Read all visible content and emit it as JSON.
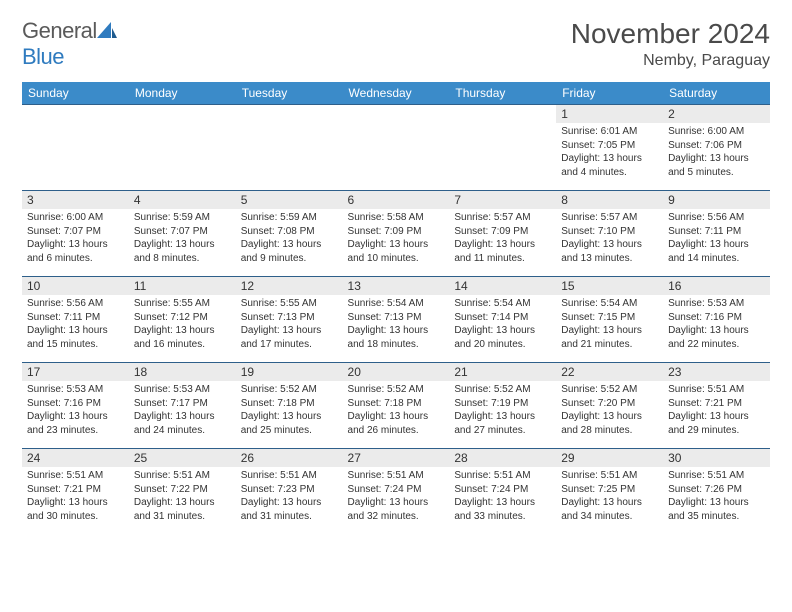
{
  "logo": {
    "general": "General",
    "blue": "Blue"
  },
  "title": "November 2024",
  "location": "Nemby, Paraguay",
  "colors": {
    "header_bg": "#3b8bc9",
    "header_text": "#ffffff",
    "border": "#2e5f8a",
    "daynum_bg": "#ebebeb",
    "spacer_bg": "#f0f0f0",
    "logo_gray": "#5a5a5a",
    "logo_blue": "#2f7bbf"
  },
  "weekdays": [
    "Sunday",
    "Monday",
    "Tuesday",
    "Wednesday",
    "Thursday",
    "Friday",
    "Saturday"
  ],
  "weeks": [
    [
      null,
      null,
      null,
      null,
      null,
      {
        "n": "1",
        "sr": "Sunrise: 6:01 AM",
        "ss": "Sunset: 7:05 PM",
        "dl1": "Daylight: 13 hours",
        "dl2": "and 4 minutes."
      },
      {
        "n": "2",
        "sr": "Sunrise: 6:00 AM",
        "ss": "Sunset: 7:06 PM",
        "dl1": "Daylight: 13 hours",
        "dl2": "and 5 minutes."
      }
    ],
    [
      {
        "n": "3",
        "sr": "Sunrise: 6:00 AM",
        "ss": "Sunset: 7:07 PM",
        "dl1": "Daylight: 13 hours",
        "dl2": "and 6 minutes."
      },
      {
        "n": "4",
        "sr": "Sunrise: 5:59 AM",
        "ss": "Sunset: 7:07 PM",
        "dl1": "Daylight: 13 hours",
        "dl2": "and 8 minutes."
      },
      {
        "n": "5",
        "sr": "Sunrise: 5:59 AM",
        "ss": "Sunset: 7:08 PM",
        "dl1": "Daylight: 13 hours",
        "dl2": "and 9 minutes."
      },
      {
        "n": "6",
        "sr": "Sunrise: 5:58 AM",
        "ss": "Sunset: 7:09 PM",
        "dl1": "Daylight: 13 hours",
        "dl2": "and 10 minutes."
      },
      {
        "n": "7",
        "sr": "Sunrise: 5:57 AM",
        "ss": "Sunset: 7:09 PM",
        "dl1": "Daylight: 13 hours",
        "dl2": "and 11 minutes."
      },
      {
        "n": "8",
        "sr": "Sunrise: 5:57 AM",
        "ss": "Sunset: 7:10 PM",
        "dl1": "Daylight: 13 hours",
        "dl2": "and 13 minutes."
      },
      {
        "n": "9",
        "sr": "Sunrise: 5:56 AM",
        "ss": "Sunset: 7:11 PM",
        "dl1": "Daylight: 13 hours",
        "dl2": "and 14 minutes."
      }
    ],
    [
      {
        "n": "10",
        "sr": "Sunrise: 5:56 AM",
        "ss": "Sunset: 7:11 PM",
        "dl1": "Daylight: 13 hours",
        "dl2": "and 15 minutes."
      },
      {
        "n": "11",
        "sr": "Sunrise: 5:55 AM",
        "ss": "Sunset: 7:12 PM",
        "dl1": "Daylight: 13 hours",
        "dl2": "and 16 minutes."
      },
      {
        "n": "12",
        "sr": "Sunrise: 5:55 AM",
        "ss": "Sunset: 7:13 PM",
        "dl1": "Daylight: 13 hours",
        "dl2": "and 17 minutes."
      },
      {
        "n": "13",
        "sr": "Sunrise: 5:54 AM",
        "ss": "Sunset: 7:13 PM",
        "dl1": "Daylight: 13 hours",
        "dl2": "and 18 minutes."
      },
      {
        "n": "14",
        "sr": "Sunrise: 5:54 AM",
        "ss": "Sunset: 7:14 PM",
        "dl1": "Daylight: 13 hours",
        "dl2": "and 20 minutes."
      },
      {
        "n": "15",
        "sr": "Sunrise: 5:54 AM",
        "ss": "Sunset: 7:15 PM",
        "dl1": "Daylight: 13 hours",
        "dl2": "and 21 minutes."
      },
      {
        "n": "16",
        "sr": "Sunrise: 5:53 AM",
        "ss": "Sunset: 7:16 PM",
        "dl1": "Daylight: 13 hours",
        "dl2": "and 22 minutes."
      }
    ],
    [
      {
        "n": "17",
        "sr": "Sunrise: 5:53 AM",
        "ss": "Sunset: 7:16 PM",
        "dl1": "Daylight: 13 hours",
        "dl2": "and 23 minutes."
      },
      {
        "n": "18",
        "sr": "Sunrise: 5:53 AM",
        "ss": "Sunset: 7:17 PM",
        "dl1": "Daylight: 13 hours",
        "dl2": "and 24 minutes."
      },
      {
        "n": "19",
        "sr": "Sunrise: 5:52 AM",
        "ss": "Sunset: 7:18 PM",
        "dl1": "Daylight: 13 hours",
        "dl2": "and 25 minutes."
      },
      {
        "n": "20",
        "sr": "Sunrise: 5:52 AM",
        "ss": "Sunset: 7:18 PM",
        "dl1": "Daylight: 13 hours",
        "dl2": "and 26 minutes."
      },
      {
        "n": "21",
        "sr": "Sunrise: 5:52 AM",
        "ss": "Sunset: 7:19 PM",
        "dl1": "Daylight: 13 hours",
        "dl2": "and 27 minutes."
      },
      {
        "n": "22",
        "sr": "Sunrise: 5:52 AM",
        "ss": "Sunset: 7:20 PM",
        "dl1": "Daylight: 13 hours",
        "dl2": "and 28 minutes."
      },
      {
        "n": "23",
        "sr": "Sunrise: 5:51 AM",
        "ss": "Sunset: 7:21 PM",
        "dl1": "Daylight: 13 hours",
        "dl2": "and 29 minutes."
      }
    ],
    [
      {
        "n": "24",
        "sr": "Sunrise: 5:51 AM",
        "ss": "Sunset: 7:21 PM",
        "dl1": "Daylight: 13 hours",
        "dl2": "and 30 minutes."
      },
      {
        "n": "25",
        "sr": "Sunrise: 5:51 AM",
        "ss": "Sunset: 7:22 PM",
        "dl1": "Daylight: 13 hours",
        "dl2": "and 31 minutes."
      },
      {
        "n": "26",
        "sr": "Sunrise: 5:51 AM",
        "ss": "Sunset: 7:23 PM",
        "dl1": "Daylight: 13 hours",
        "dl2": "and 31 minutes."
      },
      {
        "n": "27",
        "sr": "Sunrise: 5:51 AM",
        "ss": "Sunset: 7:24 PM",
        "dl1": "Daylight: 13 hours",
        "dl2": "and 32 minutes."
      },
      {
        "n": "28",
        "sr": "Sunrise: 5:51 AM",
        "ss": "Sunset: 7:24 PM",
        "dl1": "Daylight: 13 hours",
        "dl2": "and 33 minutes."
      },
      {
        "n": "29",
        "sr": "Sunrise: 5:51 AM",
        "ss": "Sunset: 7:25 PM",
        "dl1": "Daylight: 13 hours",
        "dl2": "and 34 minutes."
      },
      {
        "n": "30",
        "sr": "Sunrise: 5:51 AM",
        "ss": "Sunset: 7:26 PM",
        "dl1": "Daylight: 13 hours",
        "dl2": "and 35 minutes."
      }
    ]
  ]
}
